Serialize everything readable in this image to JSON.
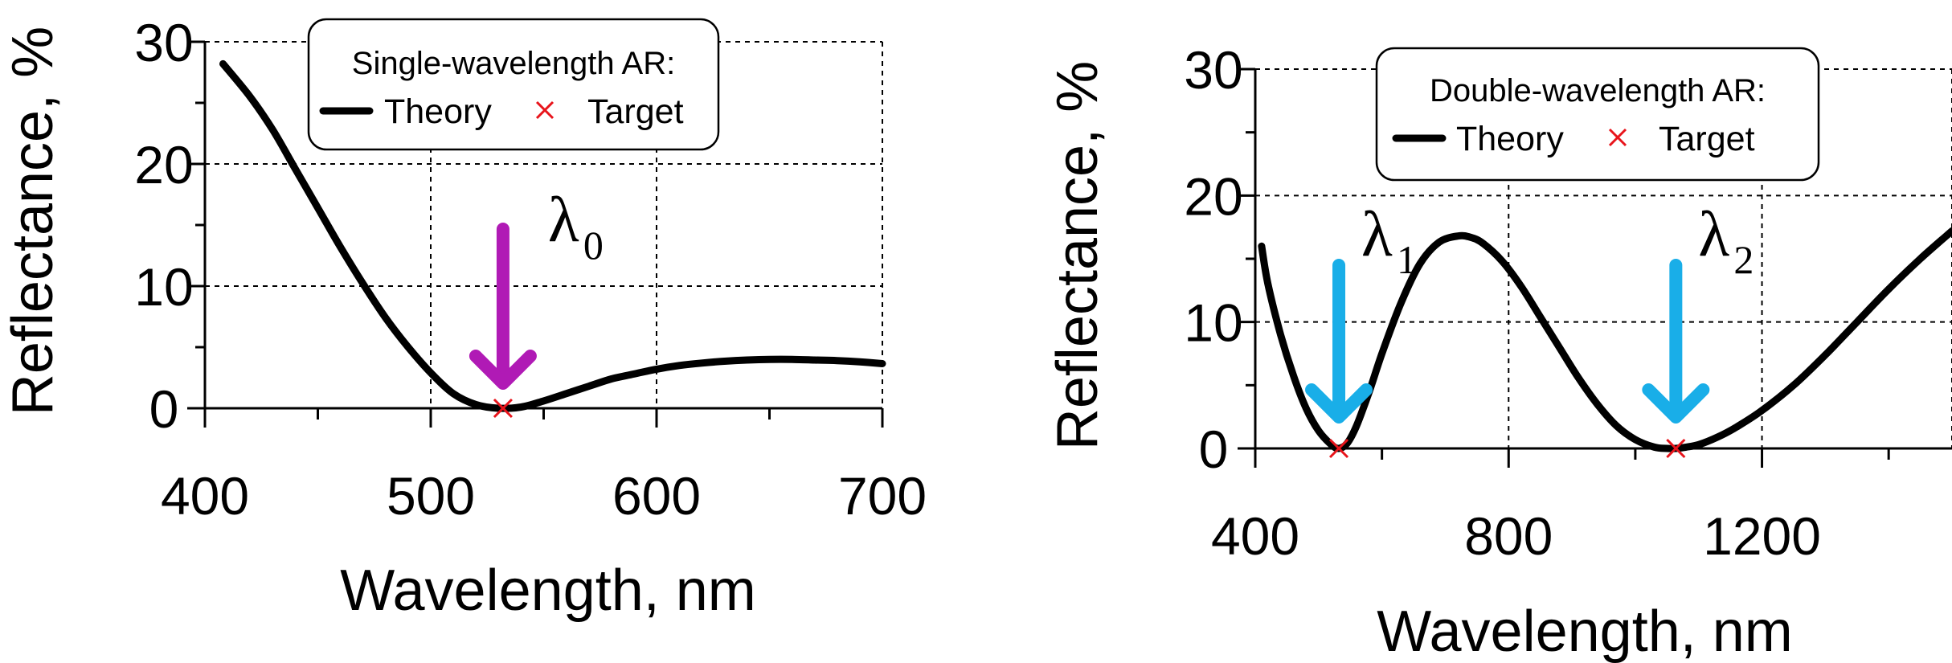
{
  "chart_data": [
    {
      "type": "line",
      "xlabel": "Wavelength, nm",
      "ylabel": "Reflectance, %",
      "xlim": [
        400,
        700
      ],
      "ylim": [
        0,
        30
      ],
      "xticks": [
        400,
        500,
        600,
        700
      ],
      "yticks": [
        0,
        10,
        20,
        30
      ],
      "grid": "dashed at major ticks",
      "legend": {
        "title": "Single-wavelength AR:",
        "placement": "top-center",
        "entries": [
          {
            "label": "Theory",
            "marker": "line",
            "color": "#000000"
          },
          {
            "label": "Target",
            "marker": "x",
            "color": "#e8141b"
          }
        ]
      },
      "series": [
        {
          "name": "Theory",
          "x": [
            408,
            420,
            430,
            440,
            450,
            460,
            470,
            480,
            490,
            500,
            510,
            520,
            530,
            540,
            550,
            560,
            570,
            580,
            590,
            600,
            610,
            620,
            630,
            640,
            650,
            660,
            670,
            680,
            690,
            700
          ],
          "y": [
            28.2,
            25.5,
            22.8,
            19.6,
            16.4,
            13.2,
            10.2,
            7.4,
            5.0,
            2.9,
            1.2,
            0.3,
            0.0,
            0.1,
            0.6,
            1.2,
            1.8,
            2.4,
            2.8,
            3.2,
            3.5,
            3.7,
            3.85,
            3.95,
            4.0,
            4.0,
            3.95,
            3.9,
            3.8,
            3.65
          ]
        },
        {
          "name": "Target",
          "x": [
            532
          ],
          "y": [
            0
          ]
        }
      ],
      "annotations": [
        {
          "label": "λ",
          "subscript": "0",
          "x": 532,
          "arrow_color": "#b01ab5"
        }
      ]
    },
    {
      "type": "line",
      "xlabel": "Wavelength, nm",
      "ylabel": "Reflectance, %",
      "xlim": [
        400,
        1500
      ],
      "ylim": [
        0,
        30
      ],
      "xticks": [
        400,
        800,
        1200
      ],
      "yticks": [
        0,
        10,
        20,
        30
      ],
      "grid": "dashed at major ticks",
      "legend": {
        "title": "Double-wavelength AR:",
        "placement": "top-center",
        "entries": [
          {
            "label": "Theory",
            "marker": "line",
            "color": "#000000"
          },
          {
            "label": "Target",
            "marker": "x",
            "color": "#e8141b"
          }
        ]
      },
      "series": [
        {
          "name": "Theory",
          "x": [
            410,
            420,
            440,
            460,
            480,
            500,
            520,
            532,
            545,
            560,
            580,
            600,
            630,
            660,
            690,
            720,
            740,
            760,
            790,
            820,
            850,
            880,
            910,
            940,
            970,
            1000,
            1030,
            1050,
            1064,
            1080,
            1100,
            1130,
            1160,
            1200,
            1250,
            1300,
            1350,
            1400,
            1450,
            1500
          ],
          "y": [
            16.0,
            13.0,
            9.0,
            5.8,
            3.2,
            1.4,
            0.3,
            0.0,
            0.4,
            1.8,
            4.5,
            7.5,
            11.5,
            14.6,
            16.3,
            16.8,
            16.7,
            16.2,
            14.8,
            12.8,
            10.4,
            8.0,
            5.6,
            3.5,
            1.8,
            0.7,
            0.1,
            0.0,
            0.0,
            0.1,
            0.3,
            0.9,
            1.7,
            3.0,
            5.0,
            7.4,
            10.0,
            12.6,
            15.0,
            17.2
          ]
        },
        {
          "name": "Target",
          "x": [
            532,
            1064
          ],
          "y": [
            0,
            0
          ]
        }
      ],
      "annotations": [
        {
          "label": "λ",
          "subscript": "1",
          "x": 532,
          "arrow_color": "#19aee8"
        },
        {
          "label": "λ",
          "subscript": "2",
          "x": 1064,
          "arrow_color": "#19aee8"
        }
      ]
    }
  ]
}
